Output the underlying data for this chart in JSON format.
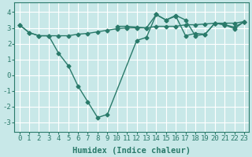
{
  "line1_x": [
    0,
    1,
    2,
    3,
    4,
    5,
    6,
    7,
    8,
    9,
    12,
    13,
    14,
    15,
    16,
    17,
    18,
    19,
    20,
    21,
    22,
    23
  ],
  "line1_y": [
    3.2,
    2.7,
    2.5,
    2.5,
    1.4,
    0.6,
    -0.7,
    -1.7,
    -2.7,
    -2.5,
    2.2,
    2.4,
    3.85,
    3.5,
    3.8,
    3.5,
    2.5,
    2.6,
    3.3,
    3.2,
    3.05,
    3.4
  ],
  "line2_x": [
    0,
    1,
    2,
    3,
    4,
    5,
    6,
    7,
    8,
    9,
    10,
    11,
    12,
    13,
    14,
    15,
    16,
    17,
    18,
    19,
    20,
    21,
    22,
    23
  ],
  "line2_y": [
    3.2,
    2.7,
    2.5,
    2.5,
    2.5,
    2.5,
    2.6,
    2.65,
    2.75,
    2.85,
    2.95,
    3.0,
    3.0,
    3.0,
    3.1,
    3.1,
    3.1,
    3.2,
    3.2,
    3.25,
    3.3,
    3.3,
    3.3,
    3.4
  ],
  "line3_x": [
    10,
    11,
    12,
    13,
    14,
    15,
    16,
    17,
    18,
    19,
    20,
    21,
    22,
    23
  ],
  "line3_y": [
    3.1,
    3.1,
    3.05,
    3.0,
    3.85,
    3.5,
    3.75,
    2.5,
    2.65,
    2.6,
    3.3,
    3.2,
    2.95,
    3.4
  ],
  "color": "#2a7a6a",
  "bg_color": "#c8e8e8",
  "grid_color": "#b0d8d8",
  "xlabel": "Humidex (Indice chaleur)",
  "xlabel_fontsize": 7.5,
  "xlim": [
    -0.5,
    23.5
  ],
  "ylim": [
    -3.6,
    4.6
  ],
  "xticks": [
    0,
    1,
    2,
    3,
    4,
    5,
    6,
    7,
    8,
    9,
    10,
    11,
    12,
    13,
    14,
    15,
    16,
    17,
    18,
    19,
    20,
    21,
    22,
    23
  ],
  "yticks": [
    -3,
    -2,
    -1,
    0,
    1,
    2,
    3,
    4
  ],
  "tick_fontsize": 6.5,
  "linewidth": 1.0,
  "markersize": 2.5,
  "fig_width": 3.2,
  "fig_height": 2.0,
  "dpi": 100
}
